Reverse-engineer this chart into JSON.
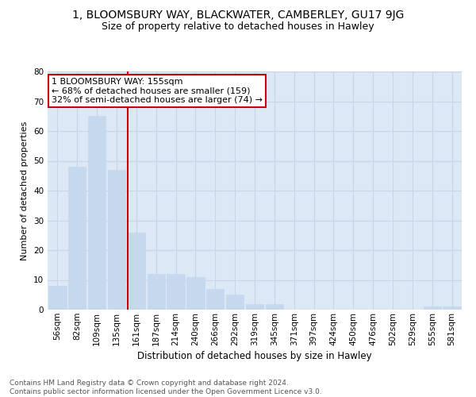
{
  "title1": "1, BLOOMSBURY WAY, BLACKWATER, CAMBERLEY, GU17 9JG",
  "title2": "Size of property relative to detached houses in Hawley",
  "xlabel": "Distribution of detached houses by size in Hawley",
  "ylabel": "Number of detached properties",
  "categories": [
    "56sqm",
    "82sqm",
    "109sqm",
    "135sqm",
    "161sqm",
    "187sqm",
    "214sqm",
    "240sqm",
    "266sqm",
    "292sqm",
    "319sqm",
    "345sqm",
    "371sqm",
    "397sqm",
    "424sqm",
    "450sqm",
    "476sqm",
    "502sqm",
    "529sqm",
    "555sqm",
    "581sqm"
  ],
  "values": [
    8,
    48,
    65,
    47,
    26,
    12,
    12,
    11,
    7,
    5,
    2,
    2,
    0,
    0,
    0,
    0,
    0,
    0,
    0,
    1,
    1
  ],
  "bar_color": "#c5d8ed",
  "bar_edge_color": "#c5d8ed",
  "vline_color": "#cc0000",
  "vline_x_index": 3.58,
  "annotation_text": "1 BLOOMSBURY WAY: 155sqm\n← 68% of detached houses are smaller (159)\n32% of semi-detached houses are larger (74) →",
  "annotation_box_facecolor": "#ffffff",
  "annotation_box_edgecolor": "#cc0000",
  "ylim": [
    0,
    80
  ],
  "yticks": [
    0,
    10,
    20,
    30,
    40,
    50,
    60,
    70,
    80
  ],
  "grid_color": "#c8d4e8",
  "bg_color": "#dce8f5",
  "footer_text": "Contains HM Land Registry data © Crown copyright and database right 2024.\nContains public sector information licensed under the Open Government Licence v3.0.",
  "title1_fontsize": 10,
  "title2_fontsize": 9,
  "xlabel_fontsize": 8.5,
  "ylabel_fontsize": 8,
  "tick_fontsize": 7.5,
  "annotation_fontsize": 8,
  "footer_fontsize": 6.5
}
